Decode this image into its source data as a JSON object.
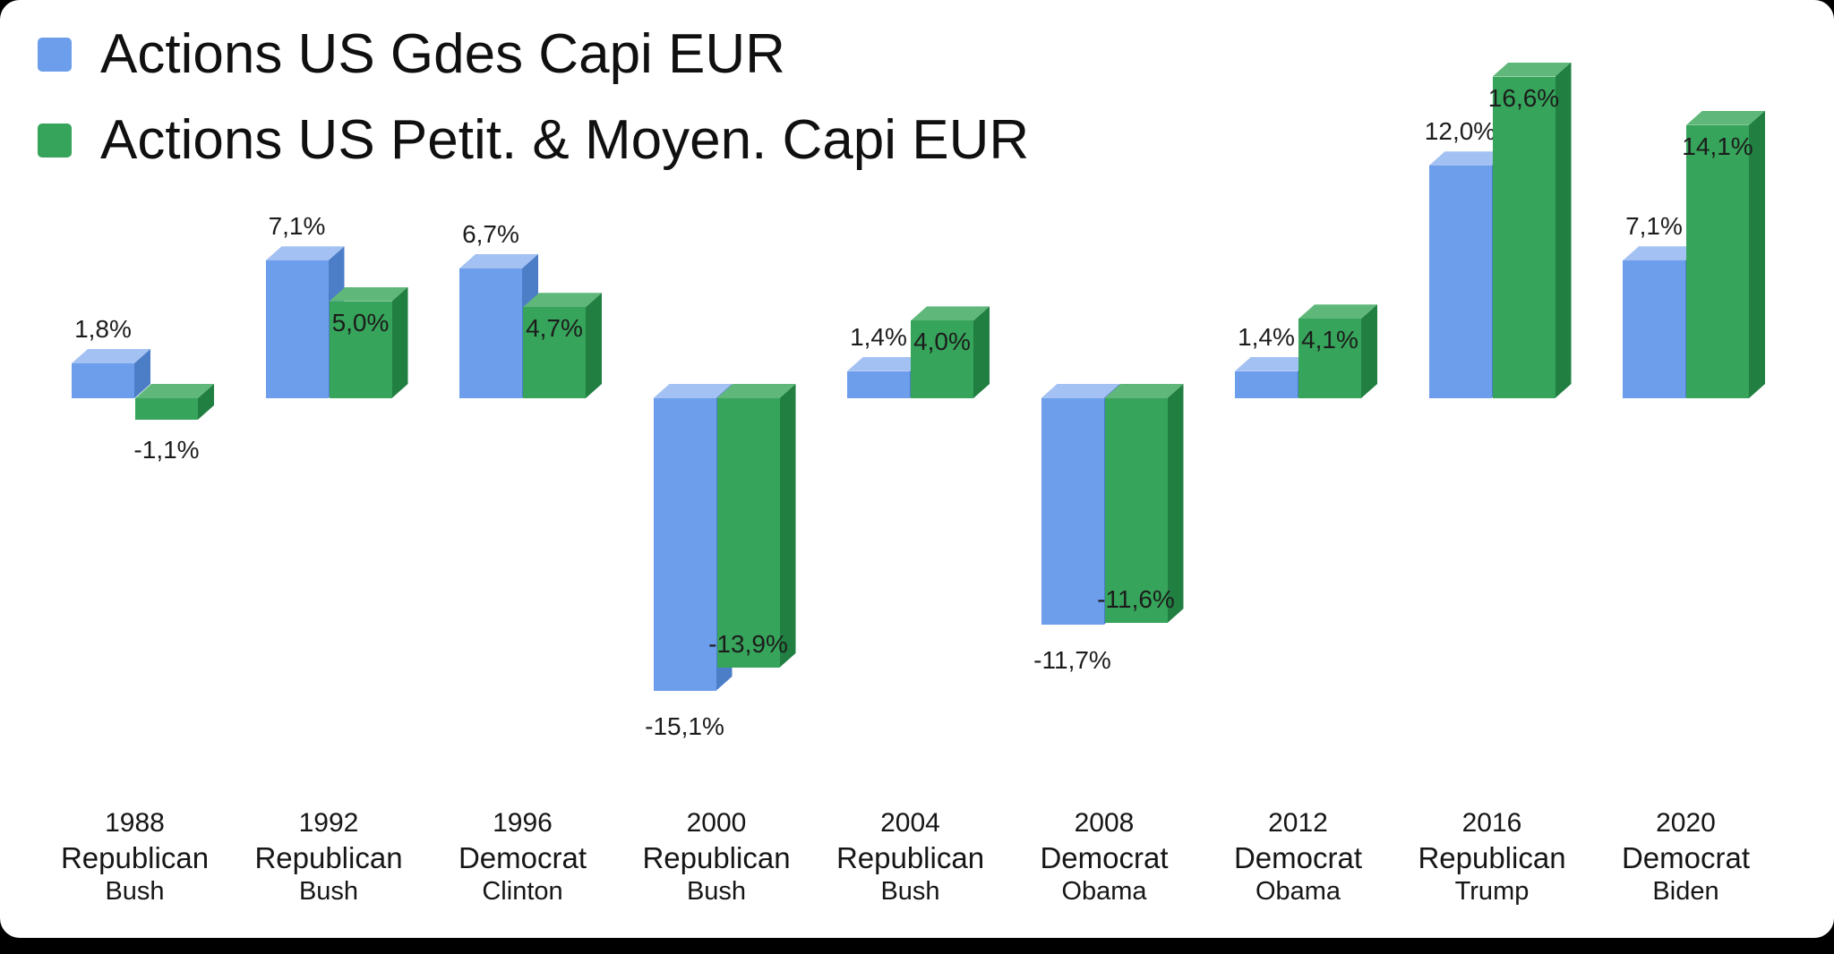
{
  "page": {
    "background_color": "#000000",
    "card_color": "#ffffff"
  },
  "legend": [
    {
      "label": "Actions US Gdes Capi EUR",
      "color": "#6d9eeb"
    },
    {
      "label": "Actions US Petit. & Moyen. Capi EUR",
      "color": "#36a45a"
    }
  ],
  "chart_data": {
    "type": "bar",
    "style": "3d-column",
    "title": "",
    "grid": false,
    "legend_position": "top-left",
    "value_format": "percent-comma-decimal",
    "ylim": [
      -16,
      18
    ],
    "baseline": 0,
    "categories": [
      {
        "year": "1988",
        "party": "Republican",
        "president": "Bush"
      },
      {
        "year": "1992",
        "party": "Republican",
        "president": "Bush"
      },
      {
        "year": "1996",
        "party": "Democrat",
        "president": "Clinton"
      },
      {
        "year": "2000",
        "party": "Republican",
        "president": "Bush"
      },
      {
        "year": "2004",
        "party": "Republican",
        "president": "Bush"
      },
      {
        "year": "2008",
        "party": "Democrat",
        "president": "Obama"
      },
      {
        "year": "2012",
        "party": "Democrat",
        "president": "Obama"
      },
      {
        "year": "2016",
        "party": "Republican",
        "president": "Trump"
      },
      {
        "year": "2020",
        "party": "Democrat",
        "president": "Biden"
      }
    ],
    "series": [
      {
        "key": "large-cap",
        "name": "Actions US Gdes Capi EUR",
        "color_front": "#6d9eeb",
        "color_top": "#a3c1f2",
        "color_side": "#4c7dc7",
        "values": [
          1.8,
          7.1,
          6.7,
          -15.1,
          1.4,
          -11.7,
          1.4,
          12.0,
          7.1
        ],
        "labels": [
          "1,8%",
          "7,1%",
          "6,7%",
          "-15,1%",
          "1,4%",
          "-11,7%",
          "1,4%",
          "12,0%",
          "7,1%"
        ]
      },
      {
        "key": "small-mid-cap",
        "name": "Actions US Petit. & Moyen. Capi EUR",
        "color_front": "#36a45a",
        "color_top": "#5fb87a",
        "color_side": "#217f42",
        "values": [
          -1.1,
          5.0,
          4.7,
          -13.9,
          4.0,
          -11.6,
          4.1,
          16.6,
          14.1
        ],
        "labels": [
          "-1,1%",
          "5,0%",
          "4,7%",
          "-13,9%",
          "4,0%",
          "-11,6%",
          "4,1%",
          "16,6%",
          "14,1%"
        ]
      }
    ]
  }
}
